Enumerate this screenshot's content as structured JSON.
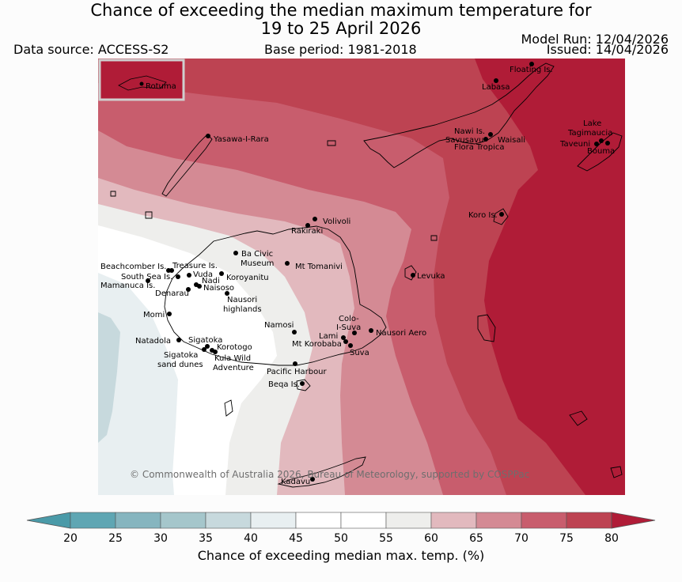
{
  "title": {
    "line1": "Chance of exceeding the median maximum temperature for",
    "line2": "19 to 25 April 2026"
  },
  "meta": {
    "data_source": "Data source: ACCESS-S2",
    "base_period": "Base period: 1981-2018",
    "model_run": "Model Run: 12/04/2026",
    "issued": "Issued: 14/04/2026"
  },
  "inset_label": "Rotuma",
  "copyright": "© Commonwealth of Australia 2026, Bureau of Meteorology, supported by COSPPac",
  "places": [
    {
      "id": "floating-is",
      "label": "Floating Is."
    },
    {
      "id": "labasa",
      "label": "Labasa"
    },
    {
      "id": "yasawa-i-rara",
      "label": "Yasawa-I-Rara"
    },
    {
      "id": "nawi-is",
      "label": "Nawi Is."
    },
    {
      "id": "savusavu",
      "label": "Savusavu"
    },
    {
      "id": "waisali",
      "label": "Waisali"
    },
    {
      "id": "flora-tropica",
      "label": "Flora Tropica"
    },
    {
      "id": "lake-tagimaucia",
      "label": "Lake Tagimaucia"
    },
    {
      "id": "taveuni",
      "label": "Taveuni"
    },
    {
      "id": "bouma",
      "label": "Bouma"
    },
    {
      "id": "koro-is",
      "label": "Koro Is."
    },
    {
      "id": "volivoli",
      "label": "Volivoli"
    },
    {
      "id": "rakiraki",
      "label": "Rakiraki"
    },
    {
      "id": "ba-civic-museum",
      "label": "Ba Civic Museum"
    },
    {
      "id": "mt-tomanivi",
      "label": "Mt Tomanivi"
    },
    {
      "id": "beachcomber-is",
      "label": "Beachcomber Is."
    },
    {
      "id": "treasure-is",
      "label": "Treasure Is."
    },
    {
      "id": "south-sea-is",
      "label": "South Sea Is."
    },
    {
      "id": "vuda",
      "label": "Vuda"
    },
    {
      "id": "koroyanitu",
      "label": "Koroyanitu"
    },
    {
      "id": "nadi",
      "label": "Nadi"
    },
    {
      "id": "mamanuca-is",
      "label": "Mamanuca Is."
    },
    {
      "id": "naisoso",
      "label": "Naisoso"
    },
    {
      "id": "denarau",
      "label": "Denarau"
    },
    {
      "id": "nausori-highlands",
      "label": "Nausori highlands"
    },
    {
      "id": "levuka",
      "label": "Levuka"
    },
    {
      "id": "momi",
      "label": "Momi"
    },
    {
      "id": "colo-i-suva",
      "label": "Colo-I-Suva"
    },
    {
      "id": "namosi",
      "label": "Namosi"
    },
    {
      "id": "nausori-aero",
      "label": "Nausori Aero"
    },
    {
      "id": "lami",
      "label": "Lami"
    },
    {
      "id": "mt-korobaba",
      "label": "Mt Korobaba"
    },
    {
      "id": "suva",
      "label": "Suva"
    },
    {
      "id": "natadola",
      "label": "Natadola"
    },
    {
      "id": "sigatoka",
      "label": "Sigatoka"
    },
    {
      "id": "korotogo",
      "label": "Korotogo"
    },
    {
      "id": "sigatoka-sand-dunes",
      "label": "Sigatoka sand dunes"
    },
    {
      "id": "kula-wild-adventure",
      "label": "Kula Wild Adventure"
    },
    {
      "id": "pacific-harbour",
      "label": "Pacific Harbour"
    },
    {
      "id": "beqa-is",
      "label": "Beqa Is."
    },
    {
      "id": "kadavu",
      "label": "Kadavu"
    }
  ],
  "colorbar": {
    "label": "Chance of exceeding median max. temp. (%)",
    "ticks": [
      "20",
      "25",
      "30",
      "35",
      "40",
      "45",
      "50",
      "55",
      "60",
      "65",
      "70",
      "75",
      "80"
    ],
    "colors": [
      "#5fa6b3",
      "#86b5bf",
      "#a5c6cb",
      "#c7d9dd",
      "#e8eff1",
      "#ffffff",
      "#ffffff",
      "#eeeeec",
      "#e2b9be",
      "#d48a94",
      "#c85d6d",
      "#bd4352",
      "#b01c37"
    ],
    "under_color": "#4a9aa8",
    "over_color": "#b01c37"
  }
}
